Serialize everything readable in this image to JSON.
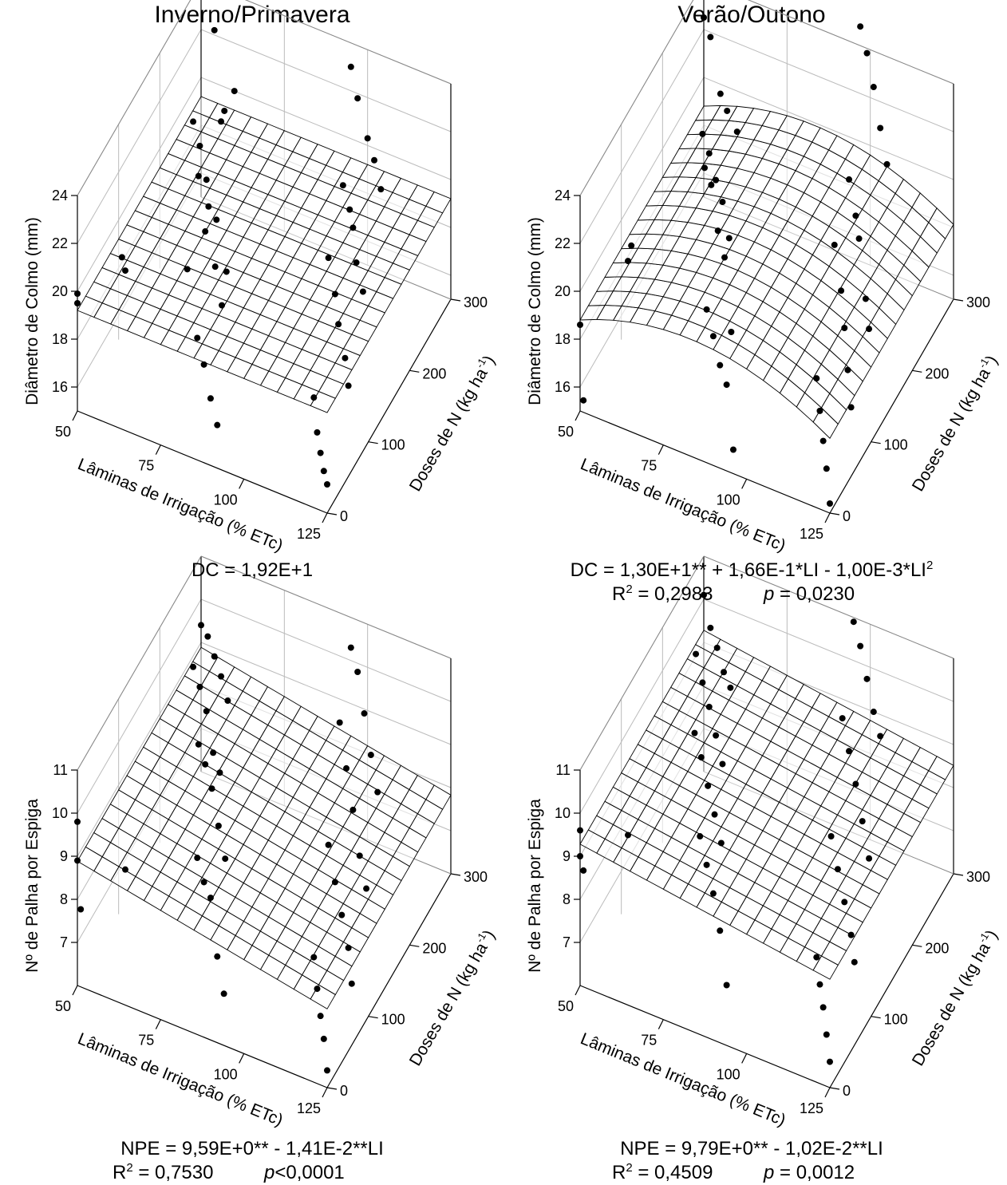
{
  "column_titles": [
    "Inverno/Primavera",
    "Verão/Outono"
  ],
  "chart_data": [
    {
      "type": "surface3d",
      "season": "Inverno/Primavera",
      "zlabel": "Diâmetro de Colmo (mm)",
      "xlabel": "Lâminas de Irrigação (% ETc)",
      "ylabel": "Doses de N (kg ha-1)",
      "xlim": [
        50,
        125
      ],
      "ylim": [
        0,
        300
      ],
      "zlim": [
        15,
        24
      ],
      "xticks": [
        50,
        75,
        100,
        125
      ],
      "yticks": [
        0,
        100,
        200,
        300
      ],
      "zticks": [
        16,
        18,
        20,
        22,
        24
      ],
      "surface": {
        "intercept": 19.2,
        "a1": 0,
        "a2": 0
      },
      "points": [
        [
          50,
          300,
          23.8
        ],
        [
          54,
          300,
          22.2
        ],
        [
          56,
          300,
          18.5
        ],
        [
          57,
          300,
          19.0
        ],
        [
          60,
          300,
          20.0
        ],
        [
          60,
          200,
          21.7
        ],
        [
          62,
          200,
          20.8
        ],
        [
          64,
          200,
          19.5
        ],
        [
          67,
          200,
          18.0
        ],
        [
          70,
          200,
          16.0
        ],
        [
          74,
          100,
          23.2
        ],
        [
          77,
          100,
          22.1
        ],
        [
          76,
          100,
          21.0
        ],
        [
          79,
          100,
          19.7
        ],
        [
          81,
          100,
          18.2
        ],
        [
          83,
          0,
          22.8
        ],
        [
          86,
          0,
          20.1
        ],
        [
          88,
          0,
          19.1
        ],
        [
          90,
          0,
          17.8
        ],
        [
          92,
          0,
          16.8
        ],
        [
          50,
          0,
          19.9
        ],
        [
          50,
          0,
          19.5
        ],
        [
          51,
          100,
          18.5
        ],
        [
          52,
          100,
          18.0
        ],
        [
          95,
          300,
          23.0
        ],
        [
          97,
          300,
          21.8
        ],
        [
          100,
          300,
          20.3
        ],
        [
          102,
          300,
          19.5
        ],
        [
          104,
          300,
          18.4
        ],
        [
          105,
          200,
          21.6
        ],
        [
          107,
          200,
          20.7
        ],
        [
          108,
          200,
          20.0
        ],
        [
          109,
          200,
          18.6
        ],
        [
          111,
          200,
          17.5
        ],
        [
          113,
          100,
          22.0
        ],
        [
          115,
          100,
          20.6
        ],
        [
          116,
          100,
          19.4
        ],
        [
          118,
          100,
          18.1
        ],
        [
          119,
          100,
          17.0
        ],
        [
          121,
          0,
          19.6
        ],
        [
          122,
          0,
          18.2
        ],
        [
          123,
          0,
          17.4
        ],
        [
          124,
          0,
          16.7
        ],
        [
          125,
          0,
          16.2
        ]
      ],
      "equation": "DC = 1,92E+1",
      "r2": "",
      "p": ""
    },
    {
      "type": "surface3d",
      "season": "Verão/Outono",
      "zlabel": "Diâmetro de Colmo (mm)",
      "xlabel": "Lâminas de Irrigação (% ETc)",
      "ylabel": "Doses de N (kg ha-1)",
      "xlim": [
        50,
        125
      ],
      "ylim": [
        0,
        300
      ],
      "zlim": [
        15,
        24
      ],
      "xticks": [
        50,
        75,
        100,
        125
      ],
      "yticks": [
        0,
        100,
        200,
        300
      ],
      "zticks": [
        16,
        18,
        20,
        22,
        24
      ],
      "surface": {
        "intercept": 13.0,
        "a1": 0.166,
        "a2": -0.001
      },
      "points": [
        [
          50,
          300,
          22.5
        ],
        [
          52,
          300,
          21.8
        ],
        [
          55,
          300,
          19.6
        ],
        [
          57,
          300,
          19.0
        ],
        [
          60,
          300,
          18.3
        ],
        [
          62,
          200,
          21.3
        ],
        [
          64,
          200,
          20.6
        ],
        [
          66,
          200,
          19.6
        ],
        [
          68,
          200,
          18.8
        ],
        [
          70,
          200,
          17.4
        ],
        [
          75,
          100,
          23.6
        ],
        [
          77,
          100,
          23.0
        ],
        [
          79,
          100,
          21.2
        ],
        [
          81,
          100,
          20.2
        ],
        [
          83,
          100,
          17.2
        ],
        [
          88,
          0,
          21.4
        ],
        [
          90,
          0,
          20.4
        ],
        [
          92,
          0,
          19.3
        ],
        [
          94,
          0,
          18.6
        ],
        [
          96,
          0,
          16.0
        ],
        [
          50,
          0,
          18.6
        ],
        [
          51,
          0,
          15.5
        ],
        [
          52,
          100,
          18.4
        ],
        [
          53,
          100,
          19.1
        ],
        [
          97,
          300,
          24.8
        ],
        [
          99,
          300,
          23.8
        ],
        [
          101,
          300,
          22.5
        ],
        [
          103,
          300,
          20.9
        ],
        [
          105,
          300,
          19.5
        ],
        [
          106,
          200,
          21.9
        ],
        [
          108,
          200,
          20.5
        ],
        [
          109,
          200,
          19.6
        ],
        [
          111,
          200,
          17.2
        ],
        [
          112,
          200,
          16.0
        ],
        [
          114,
          100,
          22.6
        ],
        [
          116,
          100,
          20.8
        ],
        [
          117,
          100,
          19.3
        ],
        [
          118,
          100,
          17.6
        ],
        [
          119,
          100,
          16.1
        ],
        [
          121,
          0,
          20.4
        ],
        [
          122,
          0,
          19.1
        ],
        [
          123,
          0,
          17.9
        ],
        [
          124,
          0,
          16.8
        ],
        [
          125,
          0,
          15.4
        ]
      ],
      "equation": "DC = 1,30E+1** + 1,66E-1*LI - 1,00E-3*LI²",
      "r2": "R² = 0,2983",
      "p": "p = 0,0230"
    },
    {
      "type": "surface3d",
      "season": "Inverno/Primavera",
      "zlabel": "Nº de Palha por Espiga",
      "xlabel": "Lâminas de Irrigação (% ETc)",
      "ylabel": "Doses de N (kg ha-1)",
      "xlim": [
        50,
        125
      ],
      "ylim": [
        0,
        300
      ],
      "zlim": [
        6,
        11
      ],
      "xticks": [
        50,
        75,
        100,
        125
      ],
      "yticks": [
        0,
        100,
        200,
        300
      ],
      "zticks": [
        7,
        8,
        9,
        10,
        11
      ],
      "surface": {
        "intercept": 9.59,
        "a1": -0.0141,
        "a2": 0
      },
      "points": [
        [
          50,
          300,
          9.4
        ],
        [
          52,
          300,
          9.2
        ],
        [
          54,
          300,
          8.8
        ],
        [
          56,
          300,
          8.4
        ],
        [
          58,
          300,
          7.9
        ],
        [
          60,
          200,
          10.4
        ],
        [
          62,
          200,
          10.0
        ],
        [
          64,
          200,
          9.5
        ],
        [
          66,
          200,
          8.6
        ],
        [
          68,
          200,
          8.2
        ],
        [
          74,
          100,
          10.7
        ],
        [
          76,
          100,
          10.3
        ],
        [
          78,
          100,
          9.8
        ],
        [
          80,
          100,
          9.0
        ],
        [
          82,
          100,
          8.3
        ],
        [
          86,
          0,
          10.1
        ],
        [
          88,
          0,
          9.6
        ],
        [
          90,
          0,
          9.3
        ],
        [
          92,
          0,
          8.0
        ],
        [
          94,
          0,
          7.2
        ],
        [
          50,
          0,
          9.8
        ],
        [
          50,
          0,
          8.9
        ],
        [
          51,
          0,
          7.8
        ],
        [
          52,
          100,
          7.1
        ],
        [
          95,
          300,
          10.3
        ],
        [
          97,
          300,
          9.8
        ],
        [
          99,
          300,
          8.9
        ],
        [
          101,
          300,
          8.0
        ],
        [
          103,
          300,
          7.2
        ],
        [
          104,
          200,
          10.5
        ],
        [
          106,
          200,
          9.5
        ],
        [
          108,
          200,
          8.6
        ],
        [
          110,
          200,
          7.6
        ],
        [
          112,
          200,
          6.9
        ],
        [
          113,
          100,
          9.6
        ],
        [
          115,
          100,
          8.8
        ],
        [
          117,
          100,
          8.1
        ],
        [
          119,
          100,
          7.4
        ],
        [
          120,
          100,
          6.6
        ],
        [
          121,
          0,
          8.9
        ],
        [
          122,
          0,
          8.2
        ],
        [
          123,
          0,
          7.6
        ],
        [
          124,
          0,
          7.1
        ],
        [
          125,
          0,
          6.4
        ]
      ],
      "equation": "NPE = 9,59E+0** - 1,41E-2**LI",
      "r2": "R² = 0,7530",
      "p": "p<0,0001"
    },
    {
      "type": "surface3d",
      "season": "Verão/Outono",
      "zlabel": "Nº de Palha por Espiga",
      "xlabel": "Lâminas de Irrigação (% ETc)",
      "ylabel": "Doses de N (kg ha-1)",
      "xlim": [
        50,
        125
      ],
      "ylim": [
        0,
        300
      ],
      "zlim": [
        6,
        11
      ],
      "xticks": [
        50,
        75,
        100,
        125
      ],
      "yticks": [
        0,
        100,
        200,
        300
      ],
      "zticks": [
        7,
        8,
        9,
        10,
        11
      ],
      "surface": {
        "intercept": 9.79,
        "a1": -0.0102,
        "a2": 0
      },
      "points": [
        [
          50,
          300,
          10.1
        ],
        [
          52,
          300,
          9.4
        ],
        [
          54,
          300,
          9.0
        ],
        [
          56,
          300,
          8.5
        ],
        [
          58,
          300,
          8.2
        ],
        [
          60,
          200,
          10.7
        ],
        [
          62,
          200,
          10.1
        ],
        [
          64,
          200,
          9.6
        ],
        [
          66,
          200,
          9.0
        ],
        [
          68,
          200,
          8.4
        ],
        [
          72,
          100,
          10.9
        ],
        [
          74,
          100,
          10.4
        ],
        [
          76,
          100,
          9.8
        ],
        [
          78,
          100,
          9.2
        ],
        [
          80,
          100,
          8.6
        ],
        [
          86,
          0,
          10.6
        ],
        [
          88,
          0,
          10.0
        ],
        [
          90,
          0,
          9.4
        ],
        [
          92,
          0,
          8.6
        ],
        [
          94,
          0,
          7.4
        ],
        [
          50,
          0,
          9.6
        ],
        [
          50,
          0,
          9.0
        ],
        [
          51,
          0,
          8.7
        ],
        [
          52,
          100,
          7.9
        ],
        [
          95,
          300,
          10.9
        ],
        [
          97,
          300,
          10.4
        ],
        [
          99,
          300,
          9.7
        ],
        [
          101,
          300,
          9.0
        ],
        [
          103,
          300,
          8.5
        ],
        [
          104,
          200,
          10.6
        ],
        [
          106,
          200,
          9.9
        ],
        [
          108,
          200,
          9.2
        ],
        [
          110,
          200,
          8.4
        ],
        [
          112,
          200,
          7.6
        ],
        [
          113,
          100,
          9.8
        ],
        [
          115,
          100,
          9.1
        ],
        [
          117,
          100,
          8.4
        ],
        [
          119,
          100,
          7.7
        ],
        [
          120,
          100,
          7.1
        ],
        [
          121,
          0,
          8.9
        ],
        [
          122,
          0,
          8.3
        ],
        [
          123,
          0,
          7.8
        ],
        [
          124,
          0,
          7.2
        ],
        [
          125,
          0,
          6.6
        ]
      ],
      "equation": "NPE = 9,79E+0** - 1,02E-2**LI",
      "r2": "R² = 0,4509",
      "p": "p = 0,0012"
    }
  ]
}
